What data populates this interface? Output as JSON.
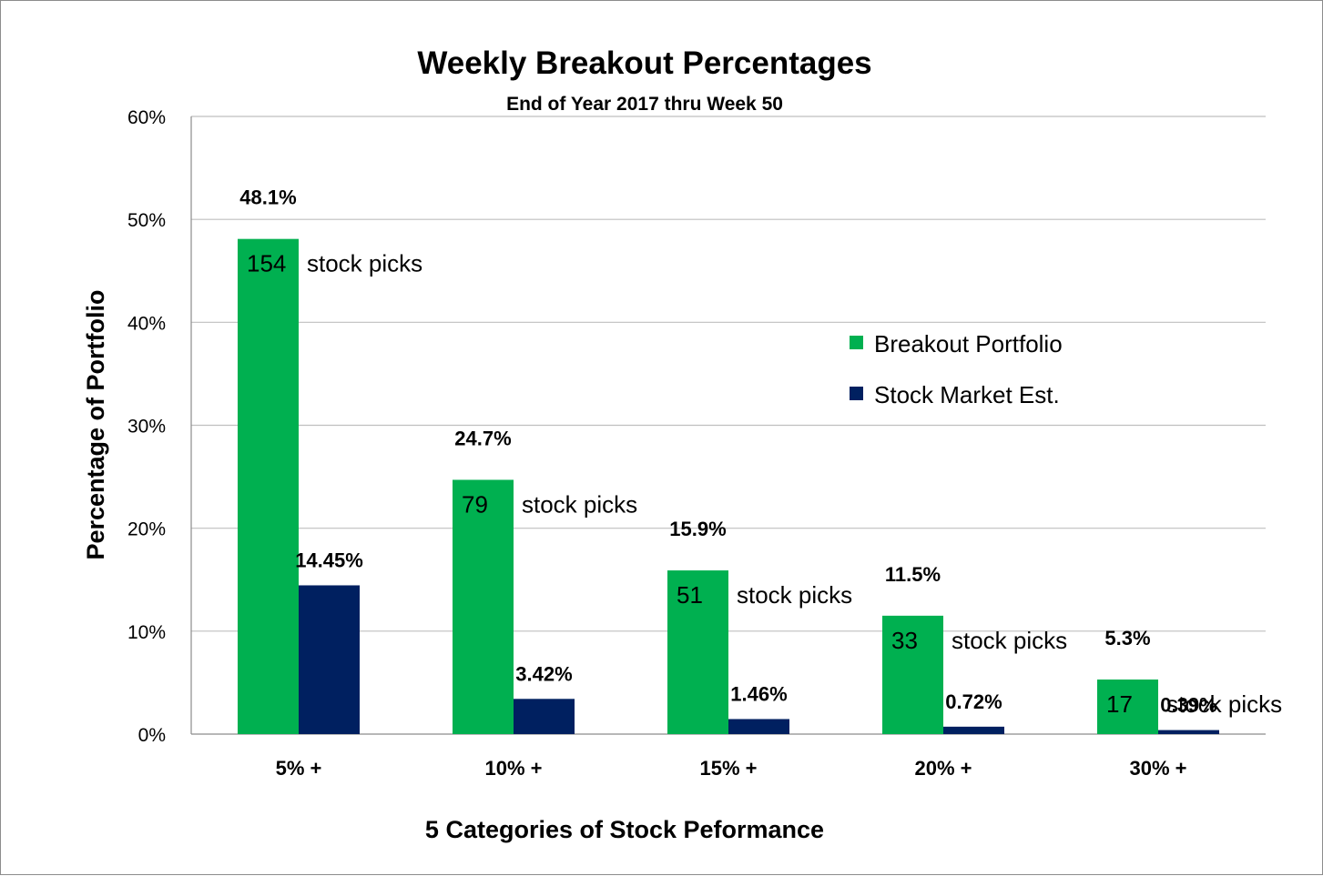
{
  "chart_data": {
    "type": "bar",
    "title": "Weekly Breakout Percentages",
    "subtitle": "End of Year 2017 thru Week 50",
    "xlabel": "5 Categories of Stock Peformance",
    "ylabel": "Percentage of Portfolio",
    "categories": [
      "5% +",
      "10% +",
      "15% +",
      "20% +",
      "30% +"
    ],
    "ylim": [
      0,
      60
    ],
    "yticks": [
      "0%",
      "10%",
      "20%",
      "30%",
      "40%",
      "50%",
      "60%"
    ],
    "grid": true,
    "legend_position": "right",
    "series": [
      {
        "name": "Breakout Portfolio",
        "color": "#00b050",
        "values": [
          48.1,
          24.7,
          15.9,
          11.5,
          5.3
        ],
        "labels": [
          "48.1%",
          "24.7%",
          "15.9%",
          "11.5%",
          "5.3%"
        ],
        "pick_counts": [
          "154",
          "79",
          "51",
          "33",
          "17"
        ]
      },
      {
        "name": "Stock Market Est.",
        "color": "#002060",
        "values": [
          14.45,
          3.42,
          1.46,
          0.72,
          0.39
        ],
        "labels": [
          "14.45%",
          "3.42%",
          "1.46%",
          "0.72%",
          "0.39%"
        ]
      }
    ],
    "pick_suffix": "stock picks"
  }
}
